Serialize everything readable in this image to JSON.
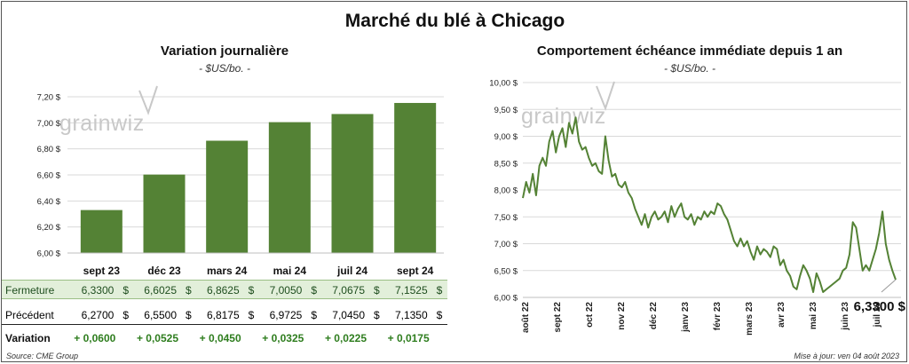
{
  "title": "Marché du blé à Chicago",
  "left_chart": {
    "subtitle": "Variation  journalière",
    "unit": "- $US/bo. -",
    "watermark": "grainwiz"
  },
  "right_chart": {
    "subtitle": "Comportement  échéance  immédiate  depuis  1  an",
    "unit": "- $US/bo. -",
    "watermark": "grainwiz",
    "last_label": "6,3300 $"
  },
  "table": {
    "row_labels": {
      "close": "Fermeture",
      "prev": "Précédent",
      "var": "Variation"
    },
    "close": [
      "6,3300",
      "6,6025",
      "6,8625",
      "7,0050",
      "7,0675",
      "7,1525"
    ],
    "prev": [
      "6,2700",
      "6,5500",
      "6,8175",
      "6,9725",
      "7,0450",
      "7,1350"
    ],
    "var": [
      "+ 0,0600",
      "+ 0,0525",
      "+ 0,0450",
      "+ 0,0325",
      "+ 0,0225",
      "+ 0,0175"
    ],
    "dollar": "$"
  },
  "source": "Source: CME Group",
  "update": "Mise à jour: ven 04 août 2023",
  "chart_data": [
    {
      "type": "bar",
      "title": "Variation  journalière",
      "ylabel": "$US/bo.",
      "categories": [
        "sept 23",
        "déc 23",
        "mars 24",
        "mai 24",
        "juil 24",
        "sept 24"
      ],
      "values": [
        6.33,
        6.6025,
        6.8625,
        7.005,
        7.0675,
        7.1525
      ],
      "ylim": [
        6.0,
        7.2
      ],
      "yticks": [
        "6,00 $",
        "6,20 $",
        "6,40 $",
        "6,60 $",
        "6,80 $",
        "7,00 $",
        "7,20 $"
      ],
      "color": "#548235"
    },
    {
      "type": "line",
      "title": "Comportement  échéance  immédiate  depuis  1  an",
      "ylabel": "$US/bo.",
      "ylim": [
        6.0,
        10.0
      ],
      "yticks": [
        "6,00 $",
        "6,50 $",
        "7,00 $",
        "7,50 $",
        "8,00 $",
        "8,50 $",
        "9,00 $",
        "9,50 $",
        "10,00 $"
      ],
      "xticks": [
        "août 22",
        "sept 22",
        "oct 22",
        "nov 22",
        "déc 22",
        "janv 23",
        "févr 23",
        "mars 23",
        "avr 23",
        "mai 23",
        "juin 23",
        "juil 23"
      ],
      "values": [
        7.85,
        8.15,
        7.95,
        8.3,
        7.9,
        8.45,
        8.6,
        8.45,
        8.9,
        9.1,
        8.7,
        9.0,
        9.15,
        8.8,
        9.25,
        9.05,
        9.35,
        8.9,
        8.75,
        8.8,
        8.6,
        8.45,
        8.5,
        8.35,
        8.3,
        9.0,
        8.55,
        8.25,
        8.3,
        8.1,
        8.05,
        8.15,
        7.95,
        7.85,
        7.65,
        7.5,
        7.35,
        7.55,
        7.3,
        7.5,
        7.6,
        7.45,
        7.5,
        7.6,
        7.4,
        7.7,
        7.5,
        7.65,
        7.75,
        7.5,
        7.45,
        7.55,
        7.35,
        7.5,
        7.45,
        7.6,
        7.5,
        7.6,
        7.55,
        7.75,
        7.7,
        7.55,
        7.45,
        7.25,
        7.05,
        6.95,
        7.1,
        6.95,
        7.05,
        6.85,
        6.7,
        6.95,
        6.8,
        6.9,
        6.85,
        6.75,
        6.95,
        6.9,
        6.6,
        6.7,
        6.5,
        6.4,
        6.2,
        6.15,
        6.4,
        6.6,
        6.5,
        6.35,
        6.1,
        6.45,
        6.3,
        6.1,
        6.15,
        6.2,
        6.25,
        6.3,
        6.35,
        6.5,
        6.55,
        6.8,
        7.4,
        7.3,
        6.9,
        6.5,
        6.6,
        6.5,
        6.7,
        6.9,
        7.2,
        7.6,
        7.0,
        6.7,
        6.5,
        6.33
      ],
      "last_value": 6.33,
      "color": "#548235"
    }
  ]
}
